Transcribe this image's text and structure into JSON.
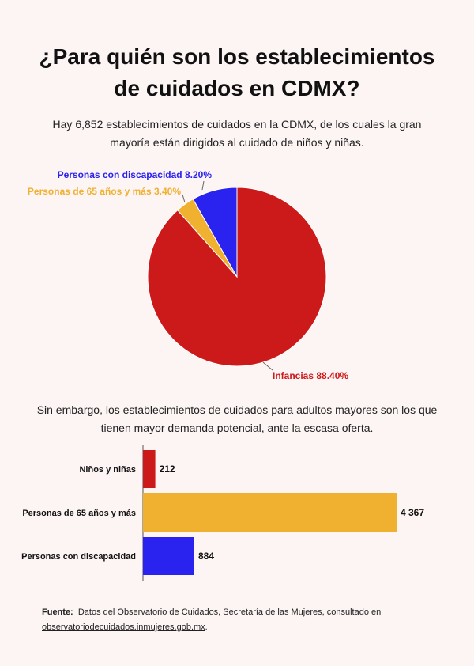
{
  "title": "¿Para quién son los establecimientos de cuidados en CDMX?",
  "intro": "Hay 6,852 establecimientos de cuidados en la CDMX, de los cuales la gran mayoría están dirigidos al cuidado de niños y niñas.",
  "second_text": "Sin embargo, los establecimientos de cuidados para adultos mayores son los que tienen mayor demanda potencial, ante la escasa oferta.",
  "source": {
    "label": "Fuente:",
    "text": "Datos del Observatorio de Cuidados, Secretaría de las Mujeres, consultado en",
    "url": "observatoriodecuidados.inmujeres.gob.mx",
    "end": "."
  },
  "chart_data": [
    {
      "type": "pie",
      "slices": [
        {
          "label": "Infancias",
          "value": 88.4,
          "display": "88.40%",
          "color": "#cc1a1a"
        },
        {
          "label": "Personas de 65 años y más",
          "value": 3.4,
          "display": "3.40%",
          "color": "#f0b030"
        },
        {
          "label": "Personas con discapacidad",
          "value": 8.2,
          "display": "8.20%",
          "color": "#2a22ee"
        }
      ],
      "start": "12 o'clock",
      "direction": "clockwise"
    },
    {
      "type": "bar",
      "orientation": "horizontal",
      "categories": [
        "Niños y niñas",
        "Personas de 65 años y más",
        "Personas con discapacidad"
      ],
      "values": [
        212,
        4367,
        884
      ],
      "value_labels": [
        "212",
        "4 367",
        "884"
      ],
      "colors": [
        "#cc1a1a",
        "#f0b030",
        "#2a22ee"
      ],
      "xlim": [
        0,
        4367
      ],
      "grid": false
    }
  ]
}
